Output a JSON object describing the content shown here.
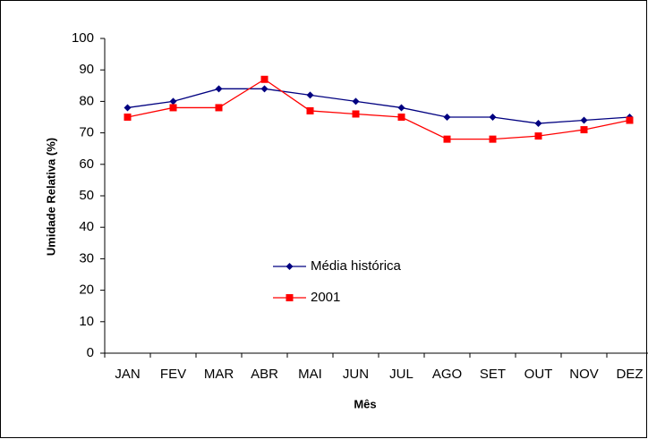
{
  "chart_data": {
    "type": "line",
    "categories": [
      "JAN",
      "FEV",
      "MAR",
      "ABR",
      "MAI",
      "JUN",
      "JUL",
      "AGO",
      "SET",
      "OUT",
      "NOV",
      "DEZ"
    ],
    "series": [
      {
        "name": "Média histórica",
        "color": "#000080",
        "marker": "diamond",
        "values": [
          78,
          80,
          84,
          84,
          82,
          80,
          78,
          75,
          75,
          73,
          74,
          75
        ]
      },
      {
        "name": "2001",
        "color": "#ff0000",
        "marker": "square",
        "values": [
          75,
          78,
          78,
          87,
          77,
          76,
          75,
          68,
          68,
          69,
          71,
          74
        ]
      }
    ],
    "x_label": "Mês",
    "y_label": "Umidade Relativa (%)",
    "ylim": [
      0,
      100
    ],
    "yticks": [
      0,
      10,
      20,
      30,
      40,
      50,
      60,
      70,
      80,
      90,
      100
    ],
    "grid": false
  }
}
